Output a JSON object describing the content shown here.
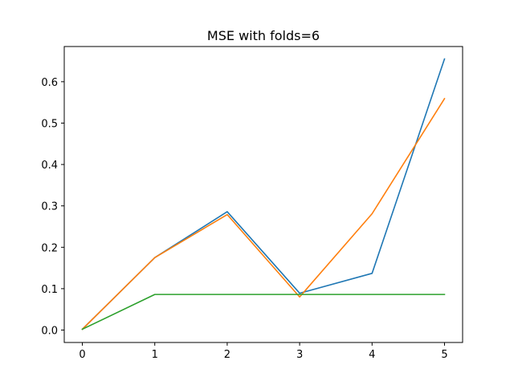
{
  "chart_data": {
    "type": "line",
    "title": "MSE with folds=6",
    "xlabel": "",
    "ylabel": "",
    "x": [
      0,
      1,
      2,
      3,
      4,
      5
    ],
    "xticks": [
      "0",
      "1",
      "2",
      "3",
      "4",
      "5"
    ],
    "yticks": [
      "0.0",
      "0.1",
      "0.2",
      "0.3",
      "0.4",
      "0.5",
      "0.6"
    ],
    "xlim": [
      -0.25,
      5.25
    ],
    "ylim": [
      -0.03,
      0.685
    ],
    "grid": false,
    "series": [
      {
        "color": "#1f77b4",
        "values": [
          0.002,
          0.175,
          0.286,
          0.089,
          0.137,
          0.655
        ]
      },
      {
        "color": "#ff7f0e",
        "values": [
          0.002,
          0.175,
          0.279,
          0.08,
          0.281,
          0.559
        ]
      },
      {
        "color": "#2ca02c",
        "values": [
          0.002,
          0.086,
          0.086,
          0.086,
          0.086,
          0.086
        ]
      }
    ]
  }
}
